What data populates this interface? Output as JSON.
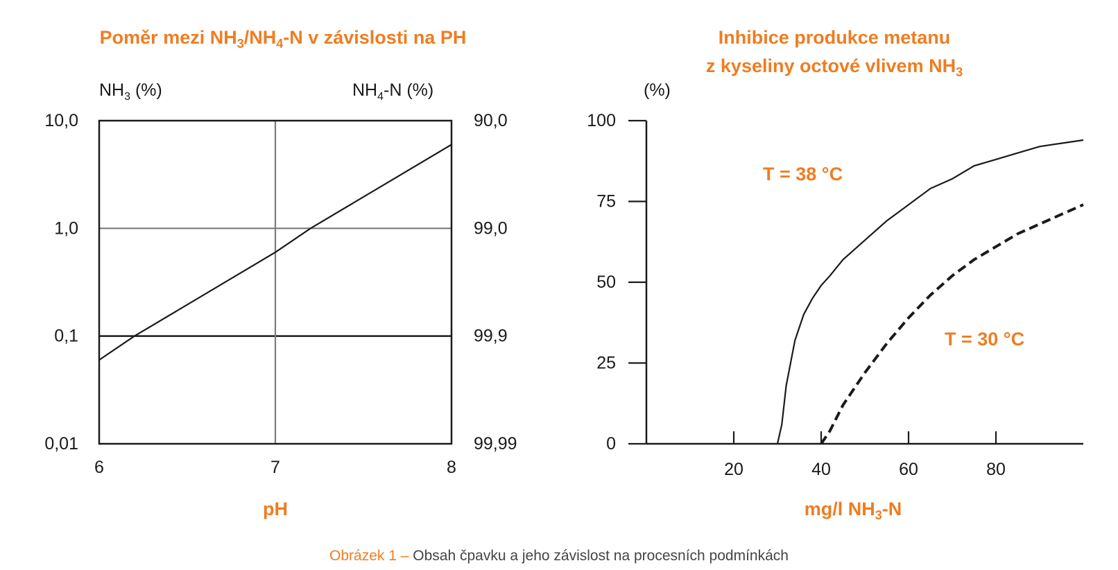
{
  "colors": {
    "accent": "#ee7d22",
    "axis": "#1a1a1a",
    "grid": "#7a7a7a"
  },
  "caption": {
    "label": "Obrázek 1 –",
    "text": "Obsah čpavku a jeho závislost na procesních podmínkách"
  },
  "chart_data": [
    {
      "type": "line",
      "title": {
        "main": "Poměr mezi NH",
        "sub1": "3",
        "mid": "/NH",
        "sub2": "4",
        "end": "-N v závislosti na PH"
      },
      "xlabel": "pH",
      "y_left_label": {
        "main": "NH",
        "sub": "3",
        "end": " (%)"
      },
      "y_right_label": {
        "main": "NH",
        "sub": "4",
        "end": "-N (%)"
      },
      "scale": "log",
      "xlim": [
        6,
        8
      ],
      "ylim": [
        0.01,
        10.0
      ],
      "x_ticks": [
        "6",
        "7",
        "8"
      ],
      "y_left_ticks": [
        "10,0",
        "1,0",
        "0,1",
        "0,01"
      ],
      "y_right_ticks": [
        "90,0",
        "99,0",
        "99,9",
        "99,99"
      ],
      "grid": true,
      "series": [
        {
          "x": [
            6,
            6.2,
            7,
            7.2,
            8
          ],
          "values": [
            0.06,
            0.1,
            0.6,
            1.0,
            6.0
          ]
        }
      ]
    },
    {
      "type": "line",
      "title": {
        "line1": "Inhibice produkce metanu",
        "line2_main": "z kyseliny octové vlivem NH",
        "line2_sub": "3"
      },
      "xlabel": {
        "main": "mg/l  NH",
        "sub": "3",
        "end": "-N"
      },
      "ylabel": "(%)",
      "xlim": [
        0,
        100
      ],
      "ylim": [
        0,
        100
      ],
      "x_ticks": [
        "20",
        "40",
        "60",
        "80"
      ],
      "y_ticks": [
        "100",
        "75",
        "50",
        "25",
        "0"
      ],
      "grid": false,
      "series": [
        {
          "name": "T = 38 °C",
          "style": "solid",
          "x": [
            30,
            31,
            32,
            34,
            36,
            38,
            40,
            42,
            45,
            50,
            55,
            60,
            65,
            70,
            75,
            80,
            85,
            90,
            95,
            100
          ],
          "values": [
            0,
            6,
            18,
            32,
            40,
            45,
            49,
            52,
            57,
            63,
            69,
            74,
            79,
            82,
            86,
            88,
            90,
            92,
            93,
            94
          ]
        },
        {
          "name": "T = 30 °C",
          "style": "dashed",
          "x": [
            40,
            42,
            45,
            50,
            55,
            60,
            65,
            70,
            75,
            80,
            85,
            90,
            95,
            100
          ],
          "values": [
            0,
            4,
            12,
            22,
            31,
            39,
            46,
            52,
            57,
            61,
            65,
            68,
            71,
            74
          ]
        }
      ]
    }
  ]
}
